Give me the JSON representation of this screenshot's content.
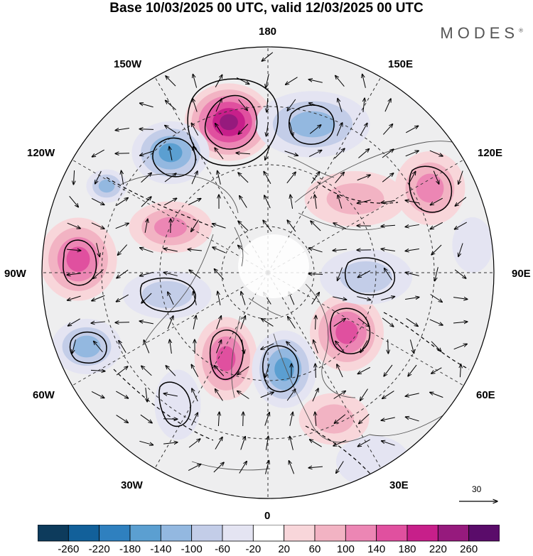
{
  "title": "Base 10/03/2025 00 UTC, valid 12/03/2025 00 UTC",
  "brand": "MODES",
  "brand_mark": "®",
  "longitude_labels": {
    "lon_180": "180",
    "lon_150w": "150W",
    "lon_150e": "150E",
    "lon_120w": "120W",
    "lon_120e": "120E",
    "lon_90w": "90W",
    "lon_90e": "90E",
    "lon_60w": "60W",
    "lon_60e": "60E",
    "lon_30w": "30W",
    "lon_30e": "30E",
    "lon_0": "0"
  },
  "reference_vector": {
    "label": "30"
  },
  "colorbar": {
    "tick_labels": [
      "-260",
      "-220",
      "-180",
      "-140",
      "-100",
      "-60",
      "-20",
      "20",
      "60",
      "100",
      "140",
      "180",
      "220",
      "260"
    ],
    "colors": [
      "#0d3b5c",
      "#12609a",
      "#2f80bf",
      "#5b9fd1",
      "#93b8e0",
      "#c3cde8",
      "#e4e4f2",
      "#ffffff",
      "#f8d6da",
      "#f2b3c3",
      "#ec86b4",
      "#e0509f",
      "#c71f8a",
      "#961a7d",
      "#5a0c6a"
    ]
  },
  "anomalies": [
    {
      "name": "anomaly-positive-bering",
      "value": 260
    },
    {
      "name": "anomaly-negative-east-siberia",
      "value": -140
    },
    {
      "name": "anomaly-negative-alaska",
      "value": -180
    },
    {
      "name": "anomaly-negative-nw-canada",
      "value": -140
    },
    {
      "name": "anomaly-positive-canada",
      "value": 140
    },
    {
      "name": "anomaly-positive-west-north-america",
      "value": 180
    },
    {
      "name": "anomaly-negative-hudson",
      "value": -100
    },
    {
      "name": "anomaly-negative-atlantic-west",
      "value": -140
    },
    {
      "name": "anomaly-positive-atlantic",
      "value": 180
    },
    {
      "name": "anomaly-negative-europe-north",
      "value": -180
    },
    {
      "name": "anomaly-positive-russia",
      "value": 180
    },
    {
      "name": "anomaly-negative-siberia",
      "value": -100
    },
    {
      "name": "anomaly-positive-east-asia",
      "value": 140
    },
    {
      "name": "anomaly-positive-mongolia",
      "value": 100
    },
    {
      "name": "anomaly-negative-central-asia",
      "value": -60
    },
    {
      "name": "anomaly-negative-mediterranean",
      "value": -60
    },
    {
      "name": "anomaly-positive-middle-east",
      "value": 100
    },
    {
      "name": "anomaly-negative-north-atlantic-south",
      "value": -60
    }
  ]
}
